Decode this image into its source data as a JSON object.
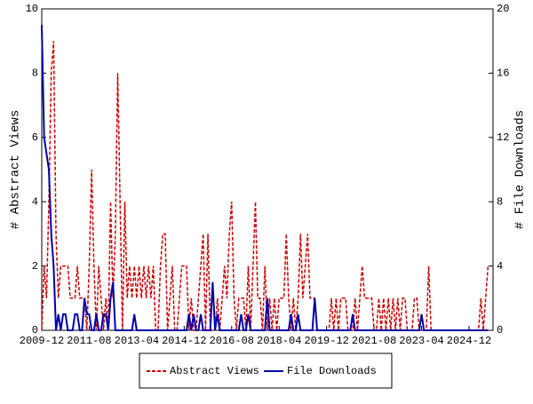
{
  "chart_data": {
    "type": "line",
    "ylabel": "# Abstract Views",
    "y2label": "# File Downloads",
    "x": [
      "2009-12",
      "2010-01",
      "2010-02",
      "2010-03",
      "2010-04",
      "2010-05",
      "2010-06",
      "2010-07",
      "2010-08",
      "2010-09",
      "2010-10",
      "2010-11",
      "2010-12",
      "2011-01",
      "2011-02",
      "2011-03",
      "2011-04",
      "2011-05",
      "2011-06",
      "2011-07",
      "2011-08",
      "2011-09",
      "2011-10",
      "2011-11",
      "2011-12",
      "2012-01",
      "2012-02",
      "2012-03",
      "2012-04",
      "2012-05",
      "2012-06",
      "2012-07",
      "2012-08",
      "2012-09",
      "2012-10",
      "2012-11",
      "2012-12",
      "2013-01",
      "2013-02",
      "2013-03",
      "2013-04",
      "2013-05",
      "2013-06",
      "2013-07",
      "2013-08",
      "2013-09",
      "2013-10",
      "2013-11",
      "2013-12",
      "2014-01",
      "2014-02",
      "2014-03",
      "2014-04",
      "2014-05",
      "2014-06",
      "2014-07",
      "2014-08",
      "2014-09",
      "2014-10",
      "2014-11",
      "2014-12",
      "2015-01",
      "2015-02",
      "2015-03",
      "2015-04",
      "2015-05",
      "2015-06",
      "2015-07",
      "2015-08",
      "2015-09",
      "2015-10",
      "2015-11",
      "2015-12",
      "2016-01",
      "2016-02",
      "2016-03",
      "2016-04",
      "2016-05",
      "2016-06",
      "2016-07",
      "2016-08",
      "2016-09",
      "2016-10",
      "2016-11",
      "2016-12",
      "2017-01",
      "2017-02",
      "2017-03",
      "2017-04",
      "2017-05",
      "2017-06",
      "2017-07",
      "2017-08",
      "2017-09",
      "2017-10",
      "2017-11",
      "2017-12",
      "2018-01",
      "2018-02",
      "2018-03",
      "2018-04",
      "2018-05",
      "2018-06",
      "2018-07",
      "2018-08",
      "2018-09",
      "2018-10",
      "2018-11",
      "2018-12",
      "2019-01",
      "2019-02",
      "2019-03",
      "2019-04",
      "2019-05",
      "2019-06",
      "2019-07",
      "2019-08",
      "2019-09",
      "2019-10",
      "2019-11",
      "2019-12",
      "2020-01",
      "2020-02",
      "2020-03",
      "2020-04",
      "2020-05",
      "2020-06",
      "2020-07",
      "2020-08",
      "2020-09",
      "2020-10",
      "2020-11",
      "2020-12",
      "2021-01",
      "2021-02",
      "2021-03",
      "2021-04",
      "2021-05",
      "2021-06",
      "2021-07",
      "2021-08",
      "2021-09",
      "2021-10",
      "2021-11",
      "2021-12",
      "2022-01",
      "2022-02",
      "2022-03",
      "2022-04",
      "2022-05",
      "2022-06",
      "2022-07",
      "2022-08",
      "2022-09",
      "2022-10",
      "2022-11",
      "2022-12",
      "2023-01",
      "2023-02",
      "2023-03",
      "2023-04",
      "2023-05",
      "2023-06",
      "2023-07",
      "2023-08",
      "2023-09",
      "2023-10",
      "2023-11",
      "2023-12",
      "2024-01",
      "2024-02",
      "2024-03",
      "2024-04",
      "2024-05",
      "2024-06",
      "2024-07",
      "2024-08",
      "2024-09",
      "2024-10",
      "2024-11",
      "2024-12",
      "2025-01",
      "2025-02",
      "2025-03",
      "2025-04",
      "2025-05",
      "2025-06",
      "2025-07",
      "2025-08"
    ],
    "xticks": [
      "2009-12",
      "2011-08",
      "2013-04",
      "2014-12",
      "2016-08",
      "2018-04",
      "2019-12",
      "2021-08",
      "2023-04",
      "2024-12"
    ],
    "ylim": [
      0,
      10
    ],
    "yticks": [
      0,
      2,
      4,
      6,
      8,
      10
    ],
    "y2lim": [
      0,
      20
    ],
    "y2ticks": [
      0,
      4,
      8,
      12,
      16,
      20
    ],
    "series": [
      {
        "name": "Abstract Views",
        "color": "#cc0000",
        "dashed": true,
        "values": [
          0,
          2,
          1,
          4,
          8,
          9,
          3,
          1,
          2,
          2,
          2,
          2,
          1,
          1,
          1,
          2,
          1,
          1,
          1,
          0,
          2,
          5,
          2,
          0,
          2,
          1,
          0,
          1,
          0,
          4,
          1,
          3,
          8,
          4,
          0,
          4,
          1,
          2,
          1,
          2,
          1,
          2,
          1,
          2,
          1,
          2,
          1,
          2,
          0,
          0,
          2,
          3,
          3,
          0,
          1,
          2,
          0,
          0,
          1,
          2,
          2,
          2,
          0,
          1,
          0,
          0,
          1,
          2,
          3,
          0,
          3,
          0,
          0,
          0,
          1,
          0,
          1,
          2,
          1,
          3,
          4,
          1,
          0,
          1,
          1,
          1,
          0,
          2,
          0,
          2,
          4,
          1,
          1,
          0,
          2,
          0,
          1,
          0,
          1,
          0,
          1,
          1,
          1,
          3,
          1,
          0,
          1,
          0,
          1,
          3,
          1,
          2,
          3,
          1,
          1,
          1,
          0,
          0,
          0,
          0,
          0,
          0,
          1,
          0,
          1,
          0,
          1,
          1,
          1,
          0,
          0,
          0,
          1,
          0,
          1,
          2,
          1,
          1,
          1,
          1,
          0,
          0,
          1,
          0,
          1,
          0,
          1,
          0,
          1,
          0,
          1,
          0,
          1,
          1,
          0,
          0,
          0,
          1,
          1,
          0,
          0,
          0,
          0,
          2,
          0,
          0,
          0,
          0,
          0,
          0,
          0,
          0,
          0,
          0,
          0,
          0,
          0,
          0,
          0,
          0,
          0,
          0,
          0,
          0,
          0,
          1,
          0,
          1,
          2
        ]
      },
      {
        "name": "File Downloads",
        "color": "#0000aa",
        "dashed": false,
        "axis": "y2",
        "values": [
          19,
          12,
          11,
          10,
          6,
          4,
          0,
          1,
          0,
          1,
          1,
          0,
          0,
          0,
          1,
          1,
          0,
          0,
          2,
          1,
          1,
          0,
          0,
          1,
          0,
          0,
          1,
          1,
          0,
          2,
          3,
          0,
          0,
          0,
          0,
          0,
          0,
          0,
          0,
          1,
          0,
          0,
          0,
          0,
          0,
          0,
          0,
          0,
          0,
          0,
          0,
          0,
          0,
          0,
          0,
          0,
          0,
          0,
          0,
          0,
          0,
          0,
          1,
          0,
          1,
          0,
          0,
          1,
          0,
          0,
          0,
          0,
          3,
          0,
          1,
          0,
          0,
          0,
          0,
          0,
          0,
          0,
          0,
          0,
          1,
          0,
          0,
          1,
          0,
          0,
          0,
          0,
          0,
          0,
          0,
          2,
          0,
          0,
          0,
          0,
          0,
          0,
          0,
          0,
          0,
          1,
          0,
          0,
          1,
          0,
          0,
          0,
          0,
          0,
          0,
          2,
          0,
          0,
          0,
          0,
          0,
          0,
          0,
          0,
          0,
          0,
          0,
          0,
          0,
          0,
          0,
          1,
          0,
          0,
          0,
          0,
          0,
          0,
          0,
          0,
          0,
          0,
          0,
          0,
          0,
          0,
          0,
          0,
          0,
          0,
          0,
          0,
          0,
          0,
          0,
          0,
          0,
          0,
          0,
          0,
          1,
          0,
          0,
          0,
          0,
          0,
          0,
          0,
          0,
          0,
          0,
          0,
          0,
          0,
          0,
          0,
          0,
          0,
          0,
          0,
          0,
          0,
          0,
          0,
          0,
          0,
          0,
          0,
          0
        ]
      }
    ]
  }
}
